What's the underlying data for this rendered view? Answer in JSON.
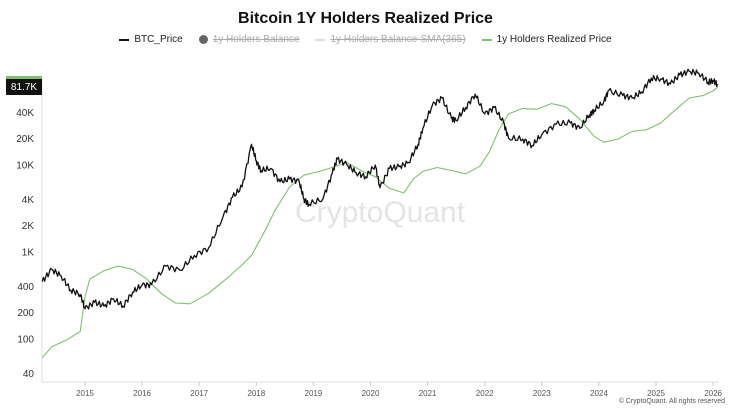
{
  "chart_data": {
    "type": "line",
    "title": "Bitcoin 1Y Holders Realized Price",
    "legend": [
      {
        "name": "BTC_Price",
        "color": "#111111",
        "active": true,
        "marker": "line"
      },
      {
        "name": "1y Holders Balance",
        "color": "#666666",
        "active": false,
        "marker": "dot"
      },
      {
        "name": "1y Holders Balance-SMA(365)",
        "color": "#dddddd",
        "active": false,
        "marker": "line"
      },
      {
        "name": "1y Holders Realized Price",
        "color": "#7fc06b",
        "active": true,
        "marker": "line"
      }
    ],
    "legend_placement": "top-center",
    "y_scale": "log",
    "ylim": [
      40,
      130000
    ],
    "y_ticks": [
      40,
      100,
      200,
      400,
      1000,
      2000,
      4000,
      10000,
      20000,
      40000
    ],
    "y_tick_labels": [
      "40",
      "100",
      "200",
      "400",
      "1K",
      "2K",
      "4K",
      "10K",
      "20K",
      "40K"
    ],
    "x_ticks": [
      "2015",
      "2016",
      "2017",
      "2018",
      "2019",
      "2020",
      "2021",
      "2022",
      "2023",
      "2024",
      "2025",
      "2026"
    ],
    "xlim": [
      "2014-04",
      "2026-02"
    ],
    "last_value_label": "81.7K",
    "grid": false,
    "series": [
      {
        "name": "BTC_Price",
        "color": "#111111",
        "points": [
          [
            "2014-04",
            450
          ],
          [
            "2014-06",
            620
          ],
          [
            "2014-08",
            520
          ],
          [
            "2014-10",
            360
          ],
          [
            "2014-12",
            320
          ],
          [
            "2015-01",
            220
          ],
          [
            "2015-03",
            260
          ],
          [
            "2015-05",
            235
          ],
          [
            "2015-07",
            285
          ],
          [
            "2015-09",
            235
          ],
          [
            "2015-11",
            340
          ],
          [
            "2016-01",
            410
          ],
          [
            "2016-03",
            415
          ],
          [
            "2016-06",
            680
          ],
          [
            "2016-09",
            605
          ],
          [
            "2016-12",
            900
          ],
          [
            "2017-03",
            1100
          ],
          [
            "2017-06",
            2500
          ],
          [
            "2017-08",
            4200
          ],
          [
            "2017-10",
            5500
          ],
          [
            "2017-12",
            17000
          ],
          [
            "2018-01",
            11000
          ],
          [
            "2018-02",
            8500
          ],
          [
            "2018-04",
            9000
          ],
          [
            "2018-06",
            6300
          ],
          [
            "2018-08",
            6800
          ],
          [
            "2018-10",
            6400
          ],
          [
            "2018-11",
            4000
          ],
          [
            "2018-12",
            3500
          ],
          [
            "2019-03",
            4000
          ],
          [
            "2019-05",
            8000
          ],
          [
            "2019-06",
            11500
          ],
          [
            "2019-08",
            10000
          ],
          [
            "2019-10",
            8000
          ],
          [
            "2019-12",
            7200
          ],
          [
            "2020-02",
            9800
          ],
          [
            "2020-03",
            5400
          ],
          [
            "2020-05",
            9000
          ],
          [
            "2020-07",
            9400
          ],
          [
            "2020-09",
            10500
          ],
          [
            "2020-11",
            17000
          ],
          [
            "2020-12",
            26000
          ],
          [
            "2021-02",
            48000
          ],
          [
            "2021-04",
            58000
          ],
          [
            "2021-06",
            34000
          ],
          [
            "2021-07",
            32000
          ],
          [
            "2021-09",
            45000
          ],
          [
            "2021-11",
            64000
          ],
          [
            "2022-01",
            38000
          ],
          [
            "2022-03",
            45000
          ],
          [
            "2022-05",
            30000
          ],
          [
            "2022-06",
            20000
          ],
          [
            "2022-09",
            19500
          ],
          [
            "2022-11",
            16500
          ],
          [
            "2023-01",
            22000
          ],
          [
            "2023-04",
            29000
          ],
          [
            "2023-07",
            30000
          ],
          [
            "2023-09",
            26000
          ],
          [
            "2023-11",
            37000
          ],
          [
            "2023-12",
            42000
          ],
          [
            "2024-02",
            52000
          ],
          [
            "2024-03",
            70000
          ],
          [
            "2024-06",
            62000
          ],
          [
            "2024-08",
            58000
          ],
          [
            "2024-10",
            68000
          ],
          [
            "2024-12",
            98000
          ],
          [
            "2025-02",
            96000
          ],
          [
            "2025-04",
            84000
          ],
          [
            "2025-06",
            107000
          ],
          [
            "2025-08",
            117000
          ],
          [
            "2025-10",
            112000
          ],
          [
            "2025-12",
            88000
          ],
          [
            "2026-01",
            92000
          ],
          [
            "2026-02",
            81700
          ]
        ]
      },
      {
        "name": "1y Holders Realized Price",
        "color": "#7fc06b",
        "points": [
          [
            "2014-04",
            60
          ],
          [
            "2014-06",
            80
          ],
          [
            "2014-09",
            95
          ],
          [
            "2014-12",
            120
          ],
          [
            "2015-01",
            300
          ],
          [
            "2015-02",
            480
          ],
          [
            "2015-05",
            600
          ],
          [
            "2015-08",
            680
          ],
          [
            "2015-11",
            620
          ],
          [
            "2016-02",
            480
          ],
          [
            "2016-05",
            330
          ],
          [
            "2016-08",
            255
          ],
          [
            "2016-11",
            250
          ],
          [
            "2017-03",
            330
          ],
          [
            "2017-07",
            500
          ],
          [
            "2017-10",
            700
          ],
          [
            "2017-12",
            900
          ],
          [
            "2018-03",
            1800
          ],
          [
            "2018-05",
            3000
          ],
          [
            "2018-08",
            5500
          ],
          [
            "2018-11",
            7500
          ],
          [
            "2019-03",
            8500
          ],
          [
            "2019-08",
            10500
          ],
          [
            "2019-11",
            8500
          ],
          [
            "2020-02",
            7200
          ],
          [
            "2020-05",
            5300
          ],
          [
            "2020-08",
            4700
          ],
          [
            "2020-10",
            6800
          ],
          [
            "2020-12",
            8300
          ],
          [
            "2021-03",
            9200
          ],
          [
            "2021-06",
            8500
          ],
          [
            "2021-09",
            7800
          ],
          [
            "2021-12",
            9500
          ],
          [
            "2022-02",
            14000
          ],
          [
            "2022-04",
            25000
          ],
          [
            "2022-06",
            38000
          ],
          [
            "2022-09",
            44000
          ],
          [
            "2022-12",
            43000
          ],
          [
            "2023-03",
            50000
          ],
          [
            "2023-06",
            46000
          ],
          [
            "2023-09",
            33000
          ],
          [
            "2023-12",
            21000
          ],
          [
            "2024-02",
            18000
          ],
          [
            "2024-05",
            19500
          ],
          [
            "2024-08",
            24000
          ],
          [
            "2024-11",
            25000
          ],
          [
            "2025-02",
            30000
          ],
          [
            "2025-05",
            42000
          ],
          [
            "2025-08",
            58000
          ],
          [
            "2025-11",
            62000
          ],
          [
            "2026-01",
            70000
          ],
          [
            "2026-02",
            78000
          ]
        ]
      }
    ]
  },
  "watermark": "CryptoQuant",
  "copyright": "© CryptoQuant. All rights reserved"
}
